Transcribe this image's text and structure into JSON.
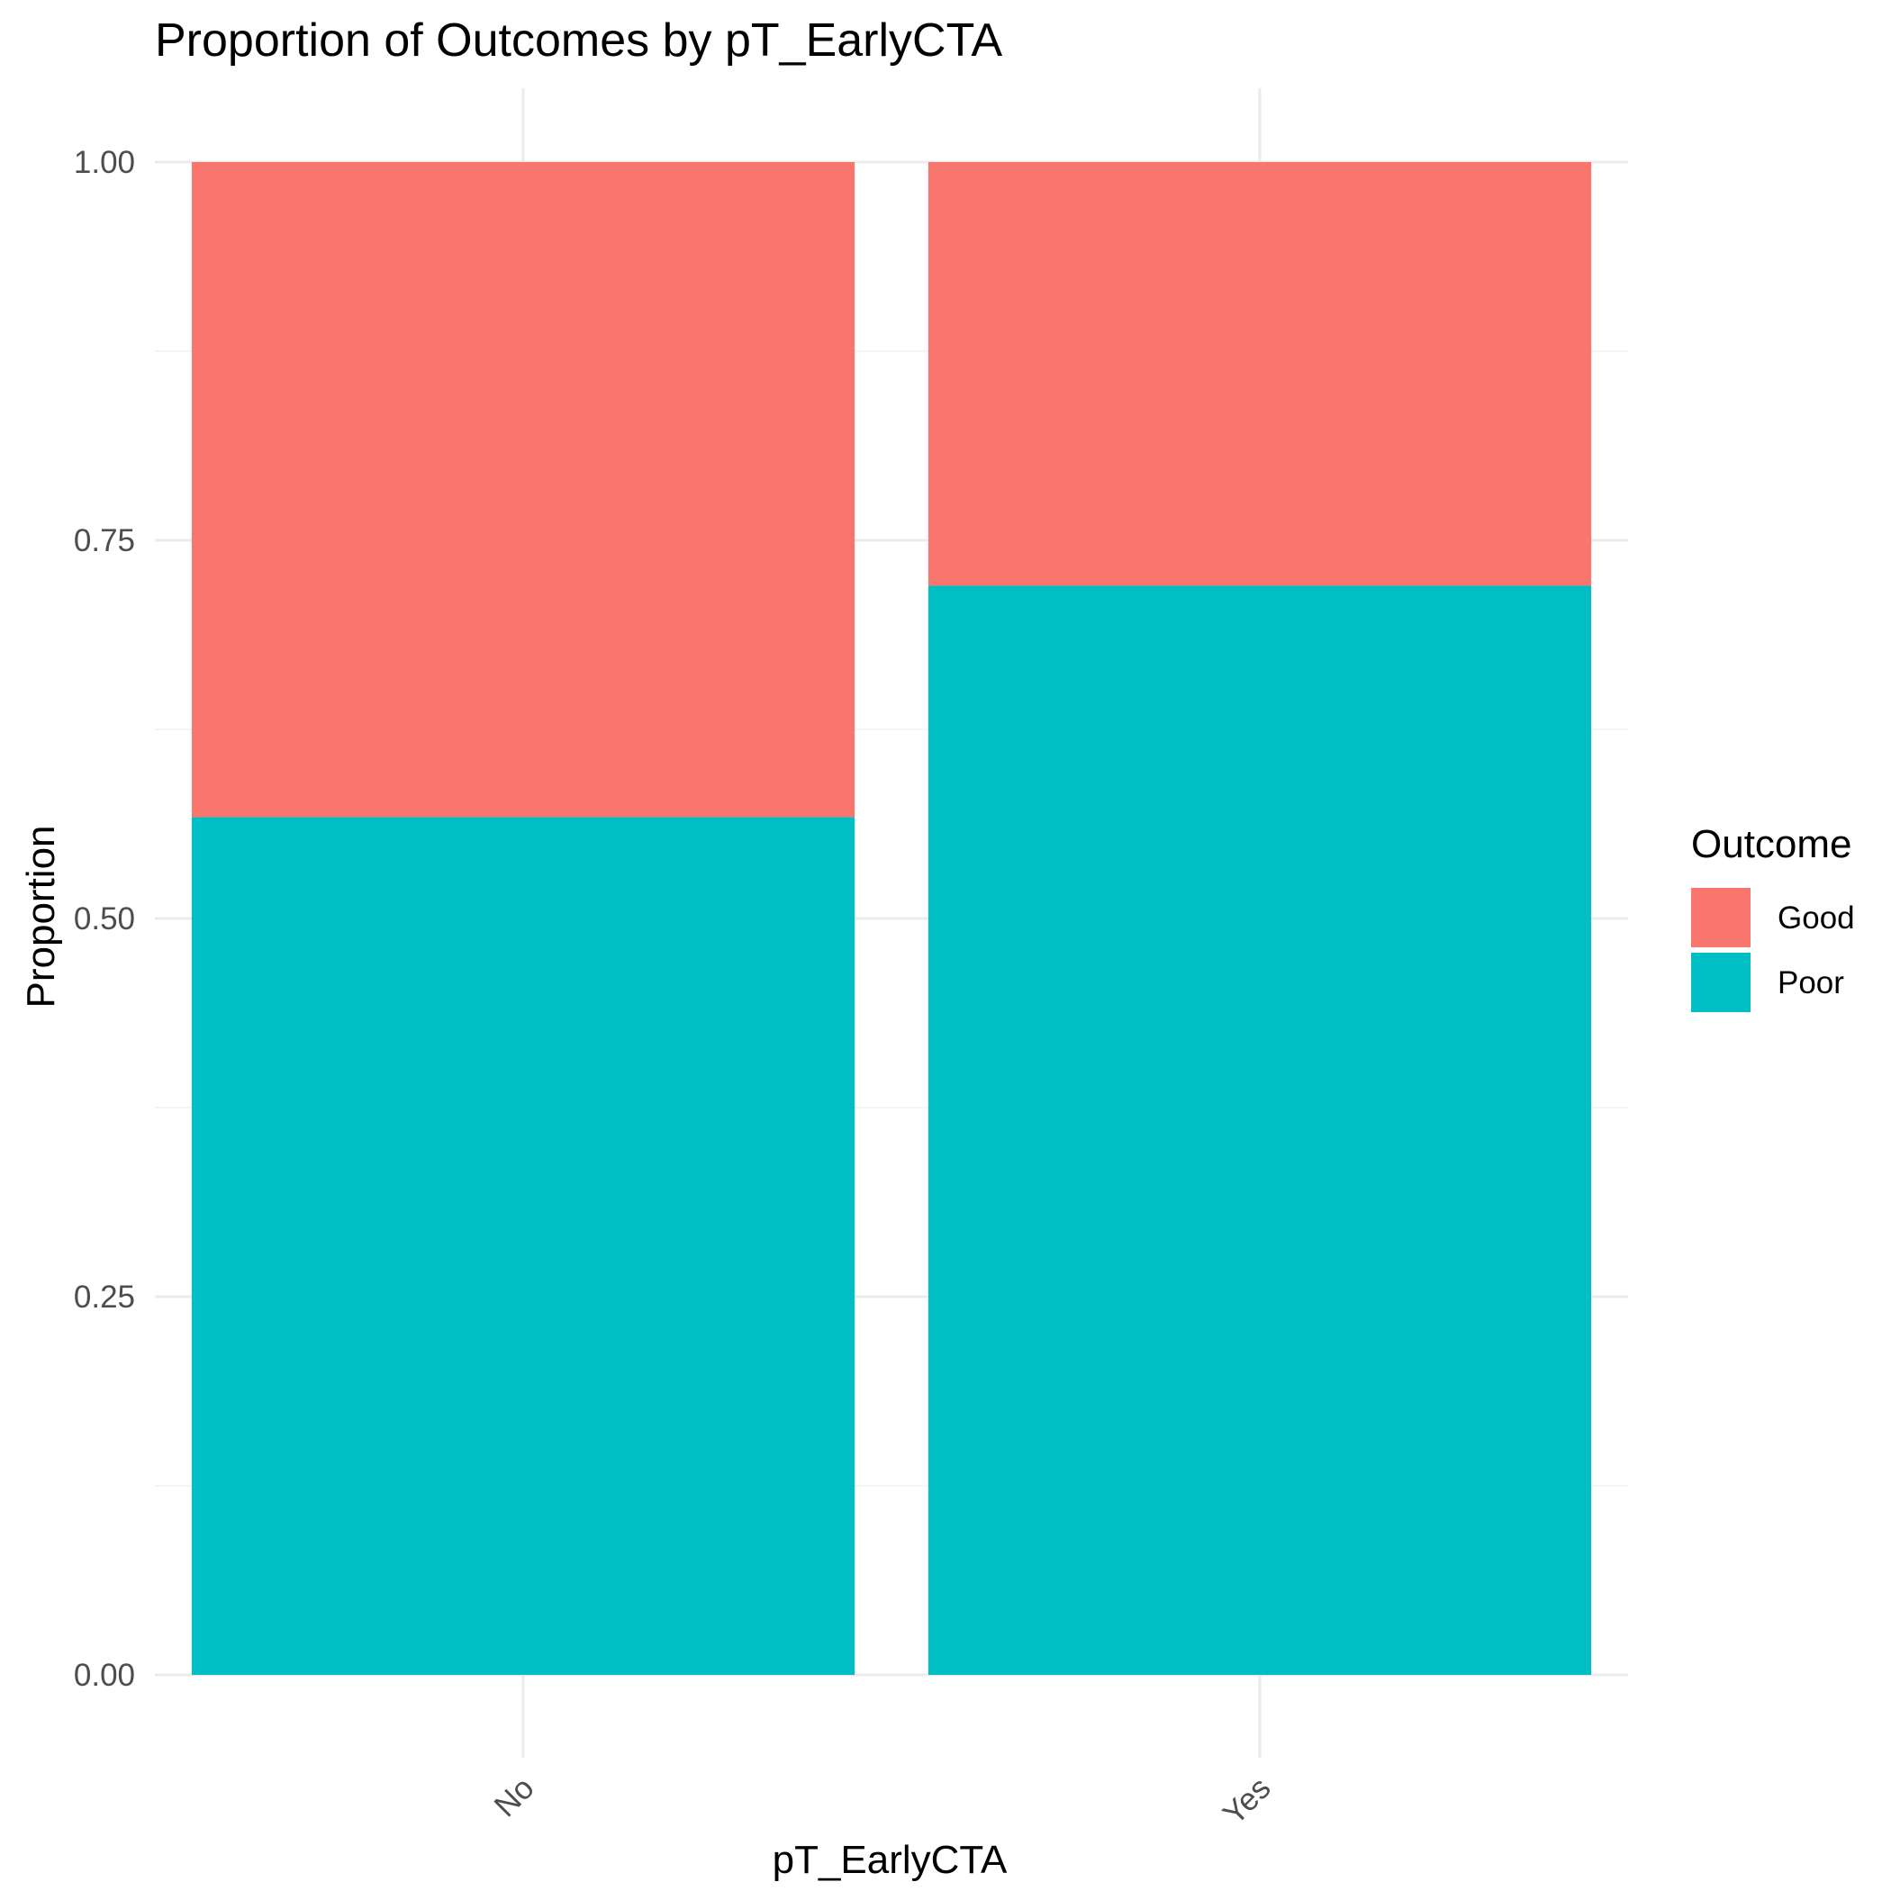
{
  "chart_data": {
    "type": "bar",
    "stacked": true,
    "title": "Proportion of Outcomes by pT_EarlyCTA",
    "xlabel": "pT_EarlyCTA",
    "ylabel": "Proportion",
    "categories": [
      "No",
      "Yes"
    ],
    "series": [
      {
        "name": "Poor",
        "values": [
          0.567,
          0.72
        ],
        "color": "#00BFC4"
      },
      {
        "name": "Good",
        "values": [
          0.433,
          0.28
        ],
        "color": "#F8766D"
      }
    ],
    "ylim": [
      0,
      1
    ],
    "yticks": [
      "0.00",
      "0.25",
      "0.50",
      "0.75",
      "1.00"
    ],
    "grid": true,
    "legend": {
      "title": "Outcome",
      "placement": "right",
      "entries": [
        {
          "label": "Good",
          "color": "#F8766D"
        },
        {
          "label": "Poor",
          "color": "#00BFC4"
        }
      ]
    }
  }
}
